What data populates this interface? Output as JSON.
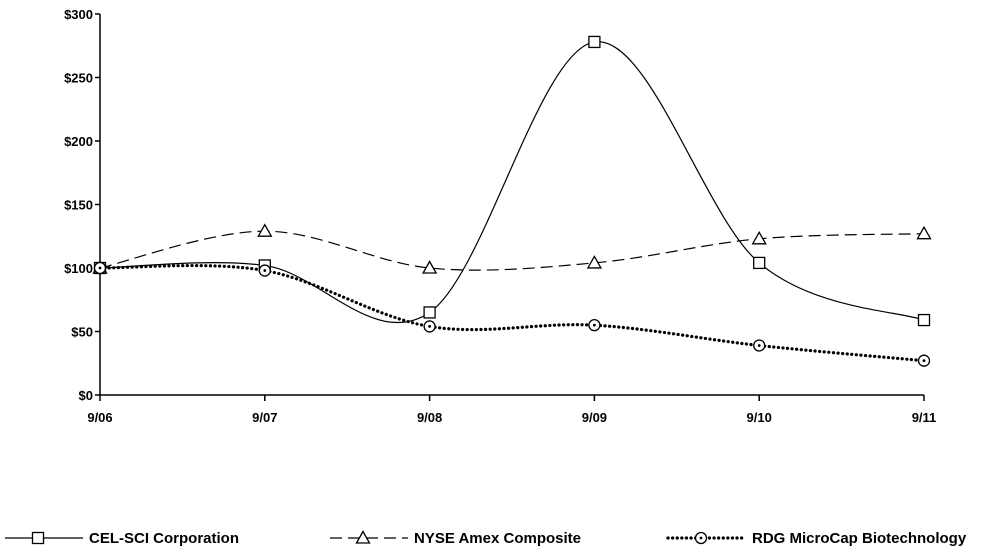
{
  "chart_data": {
    "type": "line",
    "title": "",
    "xlabel": "",
    "ylabel": "",
    "categories": [
      "9/06",
      "9/07",
      "9/08",
      "9/09",
      "9/10",
      "9/11"
    ],
    "ylim": [
      0,
      300
    ],
    "yticks": [
      0,
      50,
      100,
      150,
      200,
      250,
      300
    ],
    "ytick_labels": [
      "$0",
      "$50",
      "$100",
      "$150",
      "$200",
      "$250",
      "$300"
    ],
    "grid": false,
    "legend_position": "bottom",
    "series": [
      {
        "name": "CEL-SCI Corporation",
        "values": [
          100,
          102,
          65,
          278,
          104,
          59
        ],
        "line_style": "solid",
        "marker": "square",
        "color": "#000000"
      },
      {
        "name": "NYSE Amex Composite",
        "values": [
          100,
          129,
          100,
          104,
          123,
          127
        ],
        "line_style": "dashed",
        "marker": "triangle",
        "color": "#000000"
      },
      {
        "name": "RDG MicroCap Biotechnology",
        "values": [
          100,
          98,
          54,
          55,
          39,
          27
        ],
        "line_style": "dotted",
        "marker": "circle-dot",
        "color": "#000000"
      }
    ]
  }
}
